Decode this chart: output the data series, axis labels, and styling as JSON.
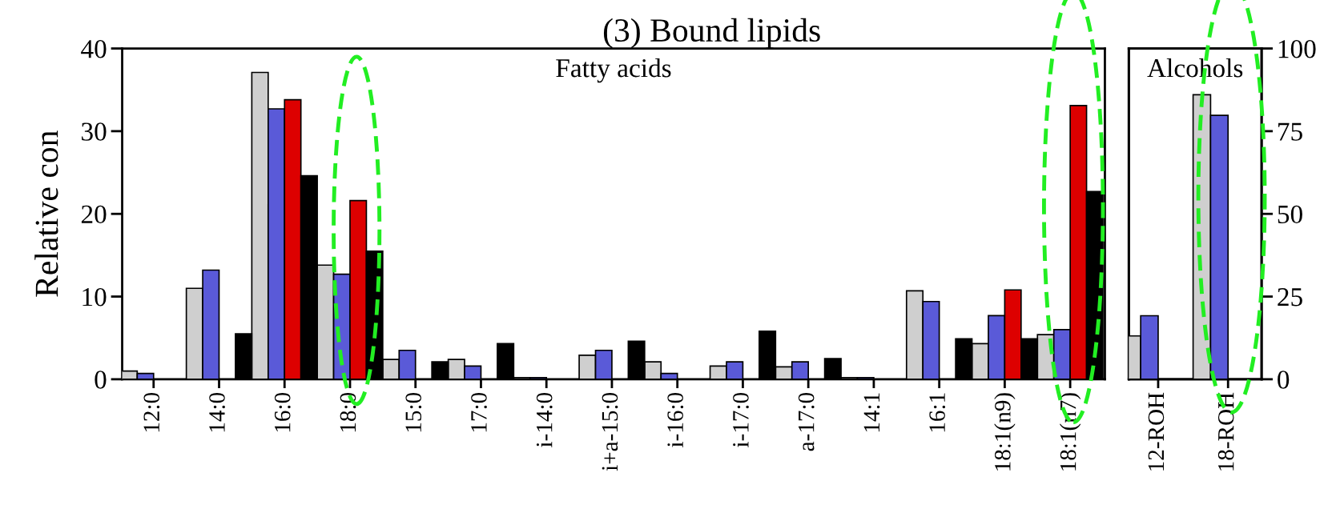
{
  "chart_data": [
    {
      "type": "bar",
      "title": "(3) Bound lipids",
      "ylabel": "Relative con",
      "categories": [
        "12:0",
        "14:0",
        "16:0",
        "18:0",
        "15:0",
        "17:0",
        "i-14:0",
        "i+a-15:0",
        "i-16:0",
        "i-17:0",
        "a-17:0",
        "14:1",
        "16:1",
        "18:1(n9)",
        "18:1(n7)"
      ],
      "series": [
        {
          "color": "#cfcfcf",
          "values": [
            1.0,
            11.0,
            37.1,
            13.8,
            2.4,
            2.4,
            0.2,
            2.9,
            2.1,
            1.6,
            1.5,
            0.2,
            10.7,
            4.3,
            5.4
          ]
        },
        {
          "color": "#5a5ad8",
          "values": [
            0.7,
            13.2,
            32.7,
            12.7,
            3.5,
            1.6,
            0.2,
            3.5,
            0.7,
            2.1,
            2.1,
            0.2,
            9.4,
            7.7,
            6.0
          ]
        },
        {
          "color": "#dd0000",
          "values": [
            null,
            null,
            33.8,
            21.6,
            null,
            null,
            null,
            null,
            null,
            null,
            null,
            null,
            null,
            10.8,
            33.1
          ]
        },
        {
          "color": "#000000",
          "values": [
            null,
            5.5,
            24.6,
            15.5,
            2.1,
            4.3,
            null,
            4.6,
            null,
            5.8,
            2.5,
            null,
            4.9,
            4.9,
            22.7
          ]
        }
      ],
      "ylim": [
        0,
        40
      ],
      "yticks": [
        0,
        10,
        20,
        30,
        40
      ],
      "annotations": [
        "Fatty acids"
      ]
    },
    {
      "type": "bar",
      "categories": [
        "12-ROH",
        "18-ROH"
      ],
      "series": [
        {
          "color": "#cfcfcf",
          "axis": "y2",
          "values": [
            13.1,
            86.0
          ]
        },
        {
          "color": "#5a5ad8",
          "axis": "y2",
          "values": [
            19.2,
            79.8
          ]
        }
      ],
      "y2lim": [
        0,
        100
      ],
      "y2ticks": [
        0,
        25,
        50,
        75,
        100
      ],
      "annotations": [
        "Alcohols"
      ]
    }
  ]
}
